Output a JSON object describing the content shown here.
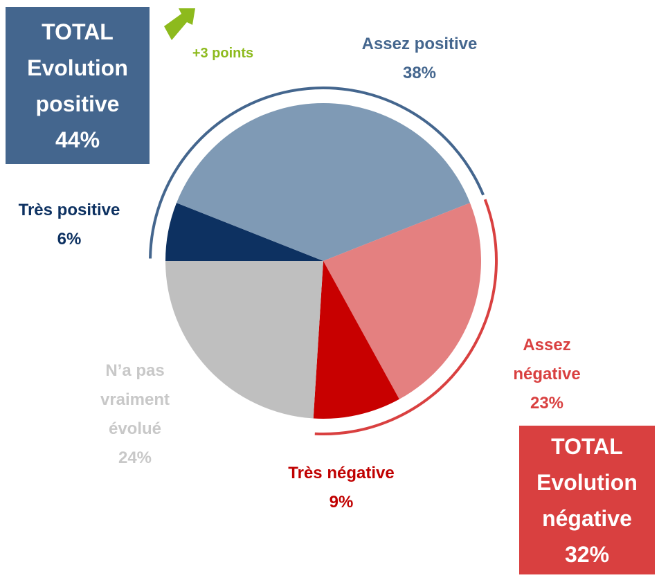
{
  "chart_data": {
    "type": "pie",
    "categories": [
      "Très positive",
      "Assez positive",
      "Assez négative",
      "Très négative",
      "N’a pas vraiment évolué"
    ],
    "values": [
      6,
      38,
      23,
      9,
      24
    ],
    "value_labels": [
      "6%",
      "38%",
      "23%",
      "9%",
      "24%"
    ],
    "colors": [
      "#0d3161",
      "#7f9ab5",
      "#e48080",
      "#c80000",
      "#bfbfbf"
    ],
    "label_colors": [
      "#0d3161",
      "#44668e",
      "#d94040",
      "#c00000",
      "#c8c8c8"
    ],
    "totals": [
      {
        "text": "TOTAL Evolution positive",
        "value": 44,
        "value_label": "44%",
        "color": "#44668e"
      },
      {
        "text": "TOTAL Evolution négative",
        "value": 32,
        "value_label": "32%",
        "color": "#d94040"
      }
    ],
    "annotation": {
      "text": "+3 points",
      "color": "#8dba1d"
    }
  }
}
